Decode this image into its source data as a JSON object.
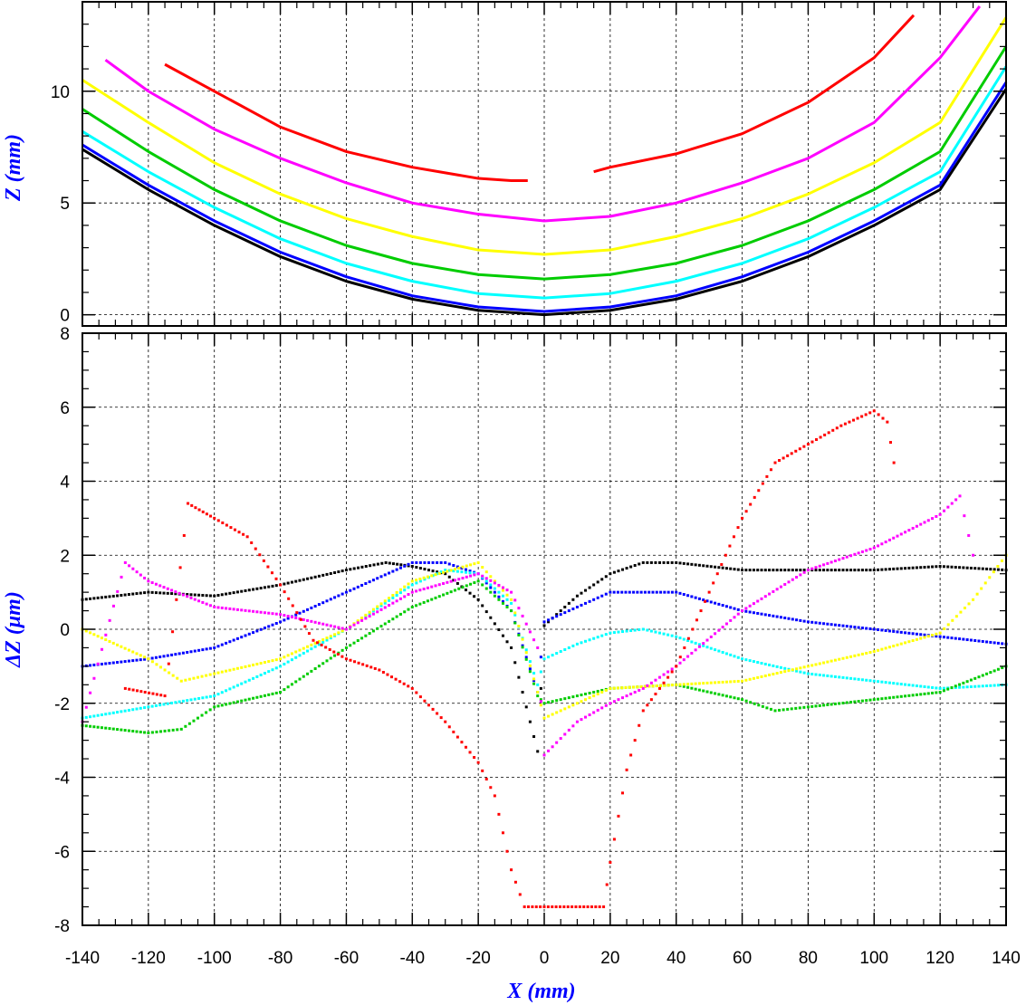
{
  "chart_data": [
    {
      "type": "line",
      "panel": "top",
      "ylabel": "Z (mm)",
      "xlabel": "",
      "xlim": [
        -140,
        140
      ],
      "ylim": [
        -0.5,
        14
      ],
      "xticks": [
        -140,
        -120,
        -100,
        -80,
        -60,
        -40,
        -20,
        0,
        20,
        40,
        60,
        80,
        100,
        120,
        140
      ],
      "yticks": [
        0,
        5,
        10
      ],
      "ytick_labels": [
        "0",
        "5",
        "10"
      ],
      "grid": true,
      "series": [
        {
          "name": "black",
          "color": "#000000",
          "x": [
            -140,
            -120,
            -100,
            -80,
            -60,
            -40,
            -20,
            0,
            20,
            40,
            60,
            80,
            100,
            120,
            140
          ],
          "y": [
            7.4,
            5.6,
            4.0,
            2.6,
            1.5,
            0.7,
            0.2,
            0.0,
            0.2,
            0.7,
            1.5,
            2.6,
            4.0,
            5.6,
            10.1
          ]
        },
        {
          "name": "blue",
          "color": "#0000ff",
          "x": [
            -140,
            -120,
            -100,
            -80,
            -60,
            -40,
            -20,
            0,
            20,
            40,
            60,
            80,
            100,
            120,
            140
          ],
          "y": [
            7.6,
            5.8,
            4.2,
            2.8,
            1.7,
            0.85,
            0.35,
            0.15,
            0.35,
            0.85,
            1.7,
            2.8,
            4.2,
            5.8,
            10.4
          ]
        },
        {
          "name": "cyan",
          "color": "#00ffff",
          "x": [
            -140,
            -120,
            -100,
            -80,
            -60,
            -40,
            -20,
            0,
            20,
            40,
            60,
            80,
            100,
            120,
            140
          ],
          "y": [
            8.2,
            6.4,
            4.8,
            3.4,
            2.3,
            1.5,
            0.95,
            0.75,
            0.95,
            1.5,
            2.3,
            3.4,
            4.8,
            6.4,
            11.1
          ]
        },
        {
          "name": "green",
          "color": "#00cc00",
          "x": [
            -140,
            -120,
            -100,
            -80,
            -60,
            -40,
            -20,
            0,
            20,
            40,
            60,
            80,
            100,
            120,
            140
          ],
          "y": [
            9.2,
            7.3,
            5.6,
            4.2,
            3.1,
            2.3,
            1.8,
            1.6,
            1.8,
            2.3,
            3.1,
            4.2,
            5.6,
            7.3,
            12.0
          ]
        },
        {
          "name": "yellow",
          "color": "#ffff00",
          "x": [
            -140,
            -120,
            -100,
            -80,
            -60,
            -40,
            -20,
            0,
            20,
            40,
            60,
            80,
            100,
            120,
            140
          ],
          "y": [
            10.5,
            8.6,
            6.8,
            5.4,
            4.3,
            3.5,
            2.9,
            2.7,
            2.9,
            3.5,
            4.3,
            5.4,
            6.8,
            8.6,
            13.3
          ]
        },
        {
          "name": "magenta",
          "color": "#ff00ff",
          "x": [
            -133,
            -120,
            -100,
            -80,
            -60,
            -40,
            -20,
            0,
            20,
            40,
            60,
            80,
            100,
            120,
            132
          ],
          "y": [
            11.4,
            10.0,
            8.3,
            7.0,
            5.9,
            5.0,
            4.5,
            4.2,
            4.4,
            5.0,
            5.9,
            7.0,
            8.6,
            11.5,
            13.8
          ]
        },
        {
          "name": "red-left",
          "color": "#ff0000",
          "x": [
            -115,
            -100,
            -80,
            -60,
            -40,
            -20,
            -10,
            -5
          ],
          "y": [
            11.2,
            10.0,
            8.4,
            7.3,
            6.6,
            6.1,
            6.0,
            6.0
          ]
        },
        {
          "name": "red-right",
          "color": "#ff0000",
          "x": [
            15,
            20,
            40,
            60,
            80,
            100,
            112
          ],
          "y": [
            6.4,
            6.6,
            7.2,
            8.1,
            9.5,
            11.5,
            13.4
          ]
        }
      ]
    },
    {
      "type": "scatter",
      "panel": "bottom",
      "ylabel": "ΔZ (μm)",
      "xlabel": "X (mm)",
      "xlim": [
        -140,
        140
      ],
      "ylim": [
        -8,
        8
      ],
      "xticks": [
        -140,
        -120,
        -100,
        -80,
        -60,
        -40,
        -20,
        0,
        20,
        40,
        60,
        80,
        100,
        120,
        140
      ],
      "xtick_labels": [
        "-140",
        "-120",
        "-100",
        "-80",
        "-60",
        "-40",
        "-20",
        "0",
        "20",
        "40",
        "60",
        "80",
        "100",
        "120",
        "140"
      ],
      "yticks": [
        -8,
        -6,
        -4,
        -2,
        0,
        2,
        4,
        6,
        8
      ],
      "ytick_labels": [
        "-8",
        "-6",
        "-4",
        "-2",
        "0",
        "2",
        "4",
        "6",
        "8"
      ],
      "grid": true,
      "series": [
        {
          "name": "black",
          "color": "#000000",
          "x": [
            -140,
            -120,
            -100,
            -80,
            -60,
            -48,
            -40,
            -30,
            -20,
            -10,
            -2,
            0,
            10,
            20,
            30,
            40,
            60,
            80,
            100,
            120,
            140
          ],
          "y": [
            0.8,
            1.0,
            0.9,
            1.2,
            1.6,
            1.8,
            1.7,
            1.5,
            0.8,
            -0.5,
            -3.3,
            0.1,
            0.9,
            1.5,
            1.8,
            1.8,
            1.6,
            1.6,
            1.6,
            1.7,
            1.6
          ]
        },
        {
          "name": "blue",
          "color": "#0000ff",
          "x": [
            -140,
            -120,
            -100,
            -80,
            -60,
            -40,
            -30,
            -20,
            -10,
            -2,
            0,
            10,
            20,
            40,
            60,
            80,
            100,
            120,
            140
          ],
          "y": [
            -1.0,
            -0.8,
            -0.5,
            0.2,
            1.0,
            1.8,
            1.8,
            1.5,
            0.5,
            -1.7,
            0.2,
            0.6,
            1.0,
            1.0,
            0.5,
            0.2,
            0.0,
            -0.2,
            -0.4
          ]
        },
        {
          "name": "cyan",
          "color": "#00ffff",
          "x": [
            -140,
            -120,
            -100,
            -80,
            -60,
            -40,
            -30,
            -20,
            -10,
            -2,
            0,
            10,
            20,
            30,
            40,
            60,
            80,
            100,
            120,
            140
          ],
          "y": [
            -2.4,
            -2.1,
            -1.8,
            -1.0,
            0.0,
            1.2,
            1.6,
            1.5,
            0.7,
            -1.5,
            -0.8,
            -0.4,
            -0.1,
            0.0,
            -0.2,
            -0.8,
            -1.2,
            -1.4,
            -1.6,
            -1.5
          ]
        },
        {
          "name": "green",
          "color": "#00cc00",
          "x": [
            -140,
            -120,
            -110,
            -100,
            -80,
            -60,
            -40,
            -20,
            -10,
            -2,
            0,
            10,
            20,
            40,
            60,
            70,
            80,
            100,
            120,
            140
          ],
          "y": [
            -2.6,
            -2.8,
            -2.7,
            -2.1,
            -1.7,
            -0.5,
            0.6,
            1.3,
            0.5,
            -1.8,
            -2.0,
            -1.8,
            -1.6,
            -1.5,
            -1.9,
            -2.2,
            -2.1,
            -1.9,
            -1.7,
            -1.0
          ]
        },
        {
          "name": "yellow",
          "color": "#ffff00",
          "x": [
            -140,
            -120,
            -110,
            -100,
            -80,
            -60,
            -40,
            -20,
            -10,
            -2,
            0,
            10,
            20,
            40,
            60,
            80,
            100,
            120,
            130,
            140
          ],
          "y": [
            0.0,
            -0.8,
            -1.4,
            -1.2,
            -0.8,
            0.0,
            1.3,
            1.8,
            0.8,
            -1.7,
            -2.4,
            -2.0,
            -1.6,
            -1.5,
            -1.4,
            -1.0,
            -0.6,
            -0.1,
            0.8,
            2.0
          ]
        },
        {
          "name": "magenta",
          "color": "#ff00ff",
          "x": [
            -140,
            -127,
            -120,
            -100,
            -80,
            -60,
            -40,
            -20,
            -10,
            -2,
            0,
            10,
            20,
            30,
            40,
            60,
            80,
            100,
            120,
            126,
            130
          ],
          "y": [
            -2.5,
            1.8,
            1.3,
            0.6,
            0.4,
            0.0,
            1.0,
            1.5,
            1.0,
            -0.5,
            -3.4,
            -2.5,
            -2.0,
            -1.6,
            -1.0,
            0.5,
            1.6,
            2.2,
            3.1,
            3.6,
            2.0
          ]
        },
        {
          "name": "red",
          "color": "#ff0000",
          "x": [
            -127,
            -115,
            -108,
            -100,
            -90,
            -80,
            -70,
            -60,
            -50,
            -40,
            -30,
            -20,
            -15,
            -10,
            -6,
            18,
            20,
            25,
            30,
            40,
            50,
            60,
            70,
            80,
            90,
            100,
            104,
            106
          ],
          "y": [
            -1.6,
            -1.8,
            3.4,
            3.0,
            2.5,
            1.2,
            -0.3,
            -0.8,
            -1.1,
            -1.6,
            -2.5,
            -3.6,
            -4.5,
            -6.5,
            -7.5,
            -7.5,
            -6.3,
            -3.8,
            -2.2,
            -1.0,
            1.0,
            3.0,
            4.5,
            5.0,
            5.5,
            5.9,
            5.6,
            4.5
          ]
        }
      ]
    }
  ]
}
